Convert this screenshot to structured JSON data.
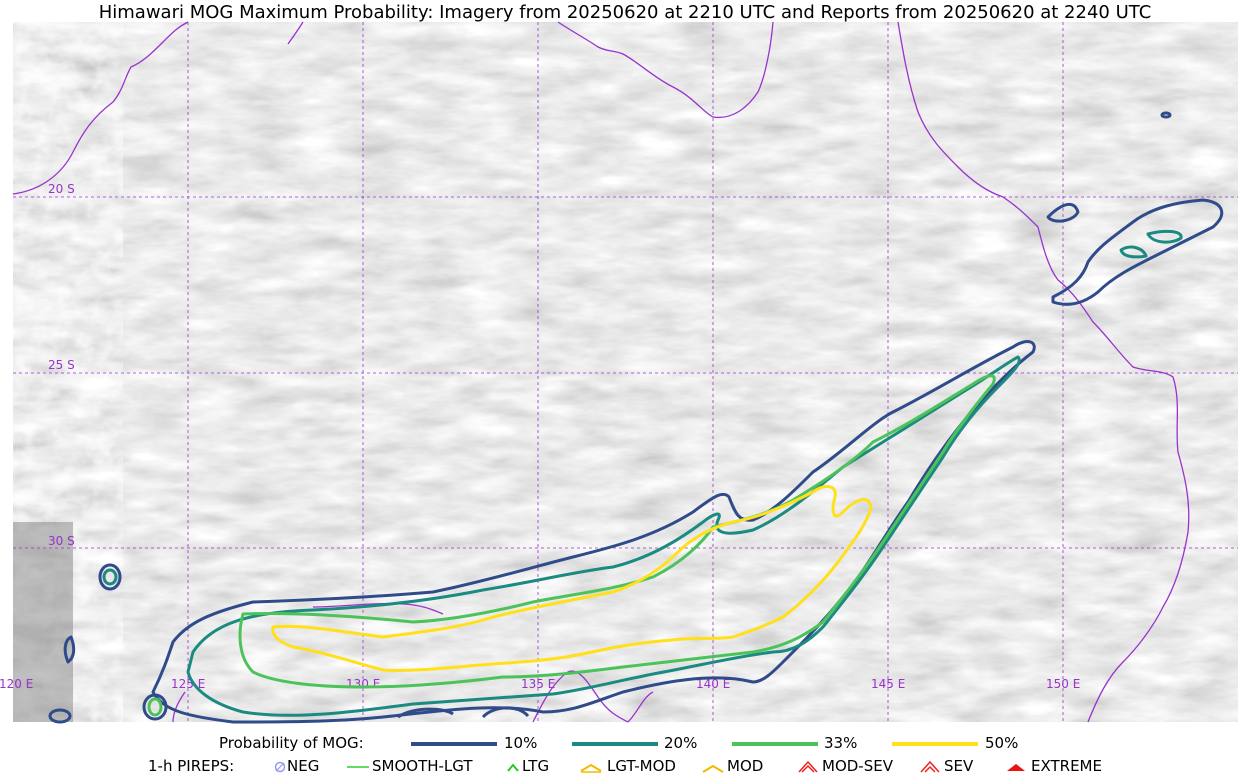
{
  "title": "Himawari MOG Maximum Probability: Imagery from 20250620 at 2210 UTC and Reports from 20250620 at 2240 UTC",
  "map": {
    "latitude_labels": [
      "20 S",
      "25 S",
      "30 S"
    ],
    "longitude_labels": [
      "120 E",
      "125 E",
      "130 E",
      "135 E",
      "140 E",
      "145 E",
      "150 E"
    ],
    "coastline_color": "#9933cc",
    "gridline_color": "#9933cc",
    "background": "grayscale satellite imagery",
    "contour_colors": {
      "p10": "#2f4b8a",
      "p20": "#1b8a80",
      "p33": "#4cc35a",
      "p50": "#ffe01a"
    }
  },
  "legend": {
    "probability_label": "Probability of MOG:",
    "probability_items": [
      {
        "label": "10%",
        "color": "#2f4b8a"
      },
      {
        "label": "20%",
        "color": "#1b8a80"
      },
      {
        "label": "33%",
        "color": "#4cc35a"
      },
      {
        "label": "50%",
        "color": "#ffe01a"
      }
    ],
    "pireps_label": "1-h PIREPS:",
    "pirep_items": [
      {
        "label": "NEG",
        "color": "#9999ee",
        "icon": "neg-circle-icon"
      },
      {
        "label": "SMOOTH-LGT",
        "color": "#33cc33",
        "icon": "smooth-line-icon"
      },
      {
        "label": "LTG",
        "color": "#22cc22",
        "icon": "ltg-caret-icon"
      },
      {
        "label": "LGT-MOD",
        "color": "#f5b800",
        "icon": "lgt-mod-caret-icon"
      },
      {
        "label": "MOD",
        "color": "#f5b800",
        "icon": "mod-caret-icon"
      },
      {
        "label": "MOD-SEV",
        "color": "#ee2222",
        "icon": "mod-sev-caret-icon"
      },
      {
        "label": "SEV",
        "color": "#ee2222",
        "icon": "sev-caret-icon"
      },
      {
        "label": "EXTREME",
        "color": "#ee1111",
        "icon": "extreme-triangle-icon"
      }
    ]
  }
}
